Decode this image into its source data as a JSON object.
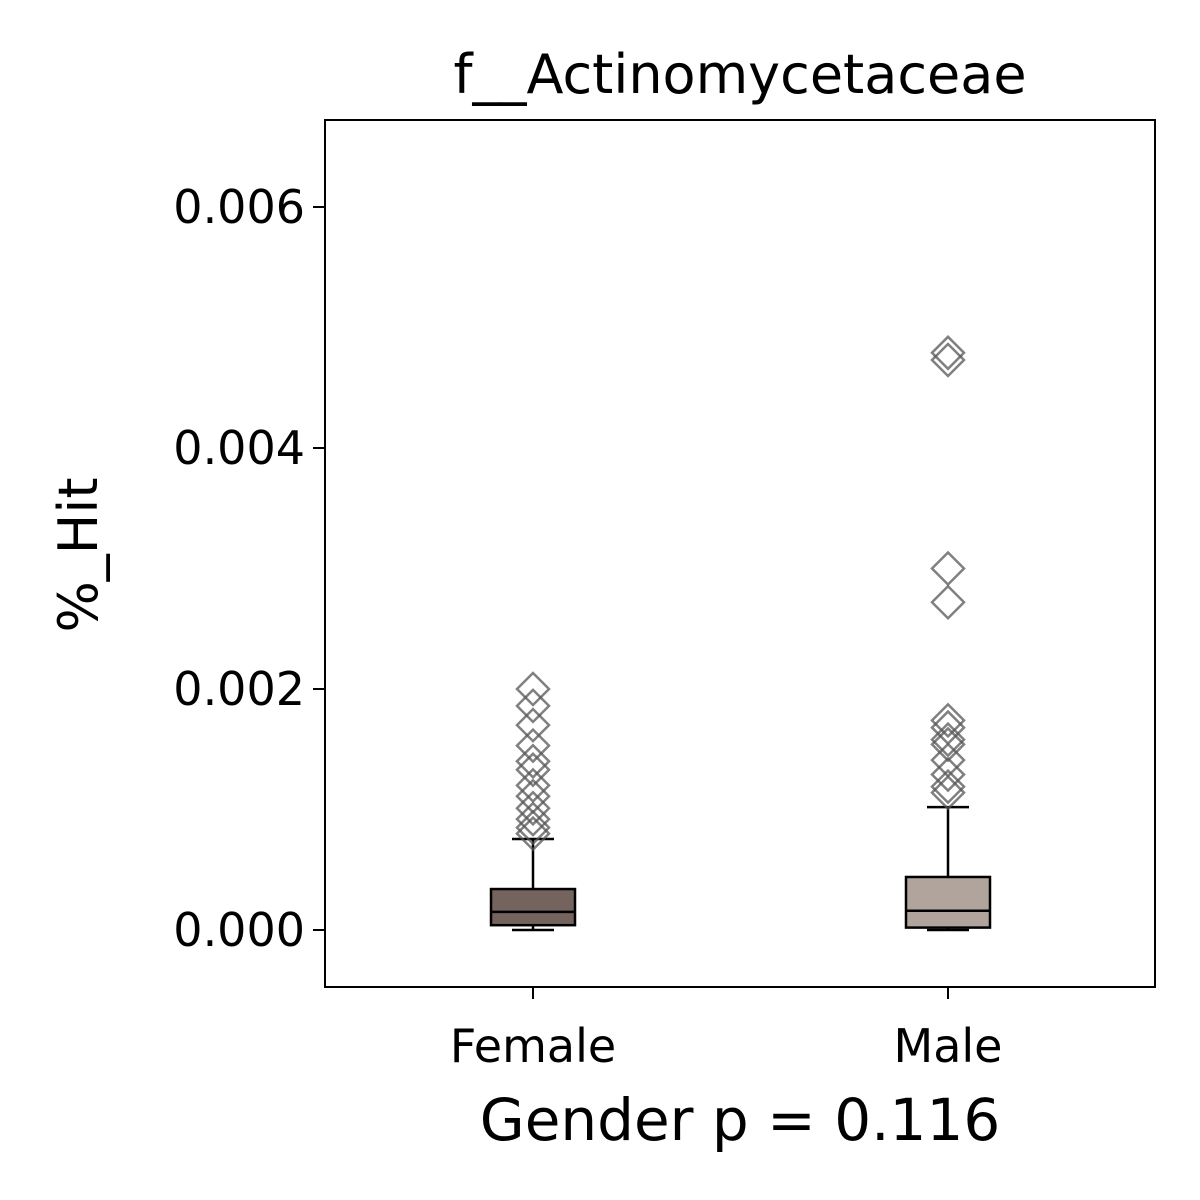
{
  "chart_data": {
    "type": "box",
    "title": "f__Actinomycetaceae",
    "x_label": "Gender p = 0.116",
    "y_label": "%_Hit",
    "categories": [
      "Female",
      "Male"
    ],
    "boxes": [
      {
        "color": "#75635e",
        "whisker_low": 0.0,
        "q1": 4e-05,
        "median": 0.00015,
        "q3": 0.00034,
        "whisker_high": 0.000755,
        "outliers": [
          0.002,
          0.00186,
          0.0017,
          0.00153,
          0.0014,
          0.00133,
          0.0012,
          0.00111,
          0.00101,
          0.00092,
          0.00085,
          0.0008
        ]
      },
      {
        "color": "#b0a49c",
        "whisker_low": 0.0,
        "q1": 2e-05,
        "median": 0.00016,
        "q3": 0.00044,
        "whisker_high": 0.00102,
        "outliers": [
          0.00479,
          0.00473,
          0.003,
          0.00272,
          0.00174,
          0.00168,
          0.00158,
          0.00154,
          0.00141,
          0.00129,
          0.00119,
          0.00114
        ]
      }
    ],
    "outlier_color": "#555555",
    "ylim": [
      -0.000473,
      0.006722
    ],
    "yticks": [
      {
        "value": 0,
        "label": "0.000"
      },
      {
        "value": 0.002,
        "label": "0.002"
      },
      {
        "value": 0.004,
        "label": "0.004"
      },
      {
        "value": 0.006,
        "label": "0.006"
      }
    ],
    "grid": false
  }
}
